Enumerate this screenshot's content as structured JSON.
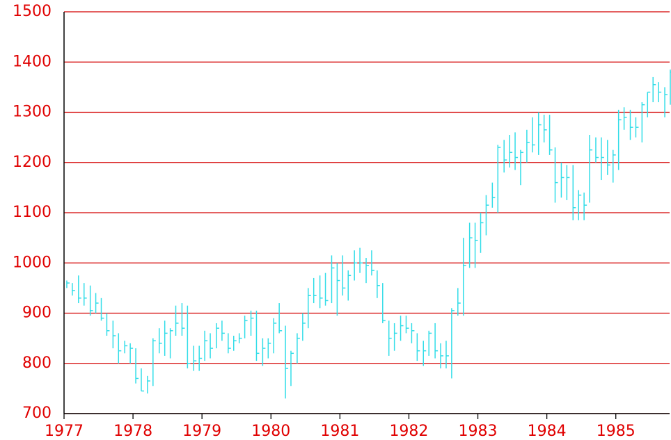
{
  "chart_data": {
    "type": "hlc",
    "color": "#33dde8",
    "grid": true,
    "grid_color": "#d40000",
    "xlim": [
      1977,
      1985.78
    ],
    "xticks": [
      1977,
      1978,
      1979,
      1980,
      1981,
      1982,
      1983,
      1984,
      1985
    ],
    "ylim": [
      700,
      1500
    ],
    "yticks": [
      700,
      800,
      900,
      1000,
      1100,
      1200,
      1300,
      1400,
      1500
    ],
    "x": [
      1977.04,
      1977.12,
      1977.21,
      1977.29,
      1977.38,
      1977.46,
      1977.54,
      1977.62,
      1977.71,
      1977.79,
      1977.88,
      1977.96,
      1978.04,
      1978.12,
      1978.21,
      1978.29,
      1978.38,
      1978.46,
      1978.54,
      1978.62,
      1978.71,
      1978.79,
      1978.88,
      1978.96,
      1979.04,
      1979.12,
      1979.21,
      1979.29,
      1979.38,
      1979.46,
      1979.54,
      1979.62,
      1979.71,
      1979.79,
      1979.88,
      1979.96,
      1980.04,
      1980.12,
      1980.21,
      1980.29,
      1980.38,
      1980.46,
      1980.54,
      1980.62,
      1980.71,
      1980.79,
      1980.88,
      1980.96,
      1981.04,
      1981.12,
      1981.21,
      1981.29,
      1981.38,
      1981.46,
      1981.54,
      1981.62,
      1981.71,
      1981.79,
      1981.88,
      1981.96,
      1982.04,
      1982.12,
      1982.21,
      1982.29,
      1982.38,
      1982.46,
      1982.54,
      1982.62,
      1982.71,
      1982.79,
      1982.88,
      1982.96,
      1983.04,
      1983.12,
      1983.21,
      1983.29,
      1983.38,
      1983.46,
      1983.54,
      1983.62,
      1983.71,
      1983.79,
      1983.88,
      1983.96,
      1984.04,
      1984.12,
      1984.21,
      1984.29,
      1984.38,
      1984.46,
      1984.54,
      1984.62,
      1984.71,
      1984.79,
      1984.88,
      1984.96,
      1985.04,
      1985.12,
      1985.21,
      1985.29,
      1985.38,
      1985.46,
      1985.54,
      1985.62,
      1985.71,
      1985.79
    ],
    "high": [
      965,
      960,
      975,
      960,
      955,
      940,
      930,
      900,
      885,
      860,
      845,
      840,
      830,
      790,
      775,
      850,
      870,
      885,
      870,
      915,
      920,
      915,
      835,
      835,
      865,
      860,
      880,
      885,
      860,
      855,
      860,
      895,
      905,
      905,
      850,
      850,
      890,
      920,
      875,
      825,
      860,
      900,
      950,
      970,
      975,
      980,
      1015,
      1000,
      1015,
      985,
      1025,
      1030,
      1010,
      1025,
      985,
      960,
      885,
      880,
      895,
      895,
      880,
      860,
      845,
      865,
      880,
      840,
      845,
      910,
      950,
      1050,
      1080,
      1080,
      1100,
      1135,
      1160,
      1235,
      1245,
      1255,
      1260,
      1225,
      1265,
      1290,
      1300,
      1295,
      1295,
      1230,
      1200,
      1195,
      1195,
      1145,
      1140,
      1255,
      1250,
      1250,
      1245,
      1225,
      1305,
      1310,
      1305,
      1290,
      1320,
      1340,
      1370,
      1360,
      1350,
      1385
    ],
    "low": [
      950,
      935,
      920,
      915,
      895,
      900,
      885,
      855,
      830,
      800,
      820,
      800,
      760,
      745,
      740,
      755,
      820,
      815,
      810,
      855,
      855,
      790,
      785,
      785,
      805,
      810,
      830,
      845,
      820,
      825,
      840,
      850,
      855,
      805,
      795,
      810,
      820,
      860,
      730,
      755,
      800,
      845,
      870,
      920,
      910,
      915,
      920,
      895,
      935,
      925,
      965,
      980,
      960,
      975,
      930,
      880,
      815,
      825,
      845,
      860,
      840,
      805,
      795,
      815,
      810,
      790,
      790,
      770,
      895,
      895,
      990,
      990,
      1020,
      1055,
      1110,
      1100,
      1180,
      1190,
      1185,
      1155,
      1200,
      1220,
      1215,
      1240,
      1215,
      1120,
      1130,
      1125,
      1085,
      1085,
      1085,
      1120,
      1200,
      1165,
      1175,
      1160,
      1185,
      1265,
      1245,
      1250,
      1240,
      1290,
      1320,
      1320,
      1290,
      1315
    ],
    "close": [
      960,
      945,
      930,
      930,
      905,
      920,
      890,
      865,
      855,
      825,
      835,
      830,
      770,
      745,
      765,
      845,
      840,
      860,
      865,
      880,
      870,
      800,
      805,
      810,
      845,
      830,
      870,
      860,
      830,
      845,
      850,
      885,
      890,
      820,
      830,
      840,
      880,
      865,
      790,
      820,
      850,
      880,
      935,
      935,
      930,
      925,
      990,
      965,
      950,
      975,
      1000,
      1000,
      995,
      985,
      955,
      885,
      850,
      860,
      875,
      870,
      865,
      825,
      825,
      860,
      825,
      815,
      815,
      905,
      920,
      995,
      1050,
      1045,
      1080,
      1115,
      1130,
      1230,
      1205,
      1220,
      1210,
      1220,
      1240,
      1235,
      1275,
      1265,
      1225,
      1160,
      1170,
      1170,
      1110,
      1135,
      1115,
      1225,
      1210,
      1210,
      1195,
      1215,
      1285,
      1290,
      1270,
      1270,
      1315,
      1340,
      1355,
      1340,
      1335,
      1380
    ]
  }
}
